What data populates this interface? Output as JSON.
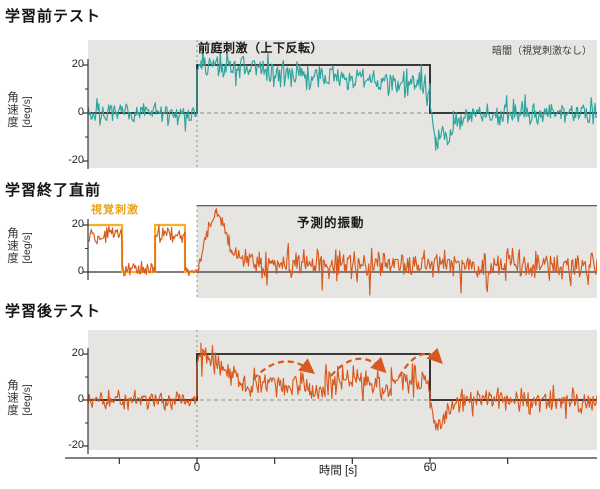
{
  "figure": {
    "panels": [
      {
        "title": "学習前テスト",
        "labels": {
          "stimulus": "前庭刺激（上下反転）",
          "condition": "暗闇（視覚刺激なし）"
        },
        "y_axis": {
          "label": "角速度",
          "unit": "[deg/s]",
          "ticks": [
            "20",
            "0",
            "-20"
          ]
        }
      },
      {
        "title": "学習終了直前",
        "labels": {
          "visual": "視覚刺激",
          "predictive": "予測的振動"
        },
        "y_axis": {
          "label": "角速度",
          "unit": "[deg/s]",
          "ticks": [
            "20",
            "0"
          ]
        }
      },
      {
        "title": "学習後テスト",
        "y_axis": {
          "label": "角速度",
          "unit": "[deg/s]",
          "ticks": [
            "20",
            "0",
            "-20"
          ]
        }
      }
    ],
    "x_axis": {
      "ticks": [
        "0",
        "60"
      ],
      "label": "時間 [s]"
    }
  },
  "colors": {
    "teal": "#2EA49C",
    "orange": "#D8591D",
    "yellow": "#F1B02C",
    "panel_bg": "#E6E5E2",
    "step": "#222222",
    "axis": "#333333",
    "dashed": "#909090"
  },
  "chart_data": [
    {
      "type": "line",
      "panel": "pre_learning_test",
      "title": "学習前テスト",
      "ylabel": "角速度 [deg/s]",
      "x_range_s": [
        -28,
        103
      ],
      "y_ticks": [
        20,
        0,
        -20
      ],
      "y_minor_ticks": [
        10,
        -10
      ],
      "zero_line": "dashed",
      "stimulus_step": {
        "points": [
          [
            -28,
            0
          ],
          [
            0,
            0
          ],
          [
            0,
            20
          ],
          [
            60,
            20
          ],
          [
            60,
            0
          ],
          [
            103,
            0
          ]
        ]
      },
      "trace": {
        "color_key": "teal",
        "segments": [
          {
            "t": [
              -28,
              0
            ],
            "mean": [
              0,
              0
            ],
            "noise": 3
          },
          {
            "t": [
              0,
              1
            ],
            "mean": [
              17,
              21
            ],
            "noise": 2
          },
          {
            "t": [
              1,
              60
            ],
            "mean": [
              20,
              11
            ],
            "noise": 4.5
          },
          {
            "t": [
              60,
              61.5
            ],
            "mean": [
              4,
              -14
            ],
            "noise": 3
          },
          {
            "t": [
              61.5,
              66
            ],
            "mean": [
              -14,
              -6
            ],
            "noise": 5
          },
          {
            "t": [
              66,
              70
            ],
            "mean": [
              -4,
              0
            ],
            "noise": 4
          },
          {
            "t": [
              70,
              103
            ],
            "mean": [
              0,
              0
            ],
            "noise": 3.5
          }
        ]
      }
    },
    {
      "type": "line",
      "panel": "end_of_learning",
      "title": "学習終了直前",
      "ylabel": "角速度 [deg/s]",
      "x_range_s": [
        -28,
        103
      ],
      "y_ticks": [
        20,
        0
      ],
      "y_minor_ticks": [
        10
      ],
      "zero_line": "solid",
      "shade_from_t": 0,
      "visual_stimulus_square": {
        "color_key": "yellow",
        "points": [
          [
            -28,
            20
          ],
          [
            -19.3,
            20
          ],
          [
            -19.3,
            0
          ],
          [
            -10.8,
            0
          ],
          [
            -10.8,
            20
          ],
          [
            -3.1,
            20
          ],
          [
            -3.1,
            0
          ],
          [
            -0.3,
            0
          ]
        ]
      },
      "trace": {
        "color_key": "orange",
        "segments": [
          {
            "t": [
              -28,
              -19.3
            ],
            "mean": [
              16,
              16
            ],
            "noise": 3
          },
          {
            "t": [
              -19.3,
              -10.8
            ],
            "mean": [
              1,
              1
            ],
            "noise": 2
          },
          {
            "t": [
              -10.8,
              -3.1
            ],
            "mean": [
              16,
              16
            ],
            "noise": 3
          },
          {
            "t": [
              -3.1,
              0.5
            ],
            "mean": [
              0.5,
              0.5
            ],
            "noise": 1.5
          },
          {
            "t": [
              0.5,
              2.5
            ],
            "mean": [
              3,
              16
            ],
            "noise": 3
          },
          {
            "t": [
              2.5,
              5
            ],
            "mean": [
              16,
              26
            ],
            "noise": 2.5
          },
          {
            "t": [
              5,
              9
            ],
            "mean": [
              26,
              9
            ],
            "noise": 3
          },
          {
            "t": [
              9,
              16
            ],
            "mean": [
              9,
              3
            ],
            "noise": 3
          },
          {
            "t": [
              16,
              103
            ],
            "mean": [
              3.2,
              3.2
            ],
            "noise": 4.8
          }
        ]
      }
    },
    {
      "type": "line",
      "panel": "post_learning_test",
      "title": "学習後テスト",
      "xlabel": "時間 [s]",
      "ylabel": "角速度 [deg/s]",
      "x_range_s": [
        -28,
        103
      ],
      "y_ticks": [
        20,
        0,
        -20
      ],
      "y_minor_ticks": [
        10,
        -10
      ],
      "zero_line": "dashed",
      "stimulus_step": {
        "points": [
          [
            -28,
            0
          ],
          [
            0,
            0
          ],
          [
            0,
            20
          ],
          [
            60,
            20
          ],
          [
            60,
            0
          ],
          [
            103,
            0
          ]
        ]
      },
      "trace": {
        "color_key": "orange",
        "segments": [
          {
            "t": [
              -28,
              0
            ],
            "mean": [
              0,
              0
            ],
            "noise": 3.5
          },
          {
            "t": [
              0,
              1
            ],
            "mean": [
              16,
              21
            ],
            "noise": 2
          },
          {
            "t": [
              1,
              14
            ],
            "mean": [
              20,
              5
            ],
            "noise": 4
          },
          {
            "t": [
              14,
              29
            ],
            "mean": [
              7,
              7
            ],
            "noise": 5
          },
          {
            "t": [
              29,
              33
            ],
            "mean": [
              3,
              3
            ],
            "noise": 3
          },
          {
            "t": [
              33,
              47
            ],
            "mean": [
              8,
              8
            ],
            "noise": 5
          },
          {
            "t": [
              47,
              50
            ],
            "mean": [
              3,
              3
            ],
            "noise": 3
          },
          {
            "t": [
              50,
              60
            ],
            "mean": [
              8,
              8
            ],
            "noise": 5
          },
          {
            "t": [
              60,
              62
            ],
            "mean": [
              0,
              -15
            ],
            "noise": 4
          },
          {
            "t": [
              62,
              66
            ],
            "mean": [
              -13,
              -4
            ],
            "noise": 5
          },
          {
            "t": [
              66,
              103
            ],
            "mean": [
              0,
              0
            ],
            "noise": 4
          }
        ]
      },
      "oscillation_arcs": [
        {
          "from": [
            14.5,
            9
          ],
          "apex": [
            22,
            22.5
          ],
          "to": [
            29.5,
            12.5
          ]
        },
        {
          "from": [
            34.5,
            10.5
          ],
          "apex": [
            41.5,
            24
          ],
          "to": [
            48,
            13
          ]
        },
        {
          "from": [
            52,
            10
          ],
          "apex": [
            57.5,
            25.5
          ],
          "to": [
            62.5,
            17
          ]
        }
      ]
    }
  ],
  "x_axis_data": {
    "tick_values_s": [
      -20,
      0,
      20,
      40,
      60,
      80
    ],
    "labeled_values_s": [
      0,
      60
    ]
  }
}
